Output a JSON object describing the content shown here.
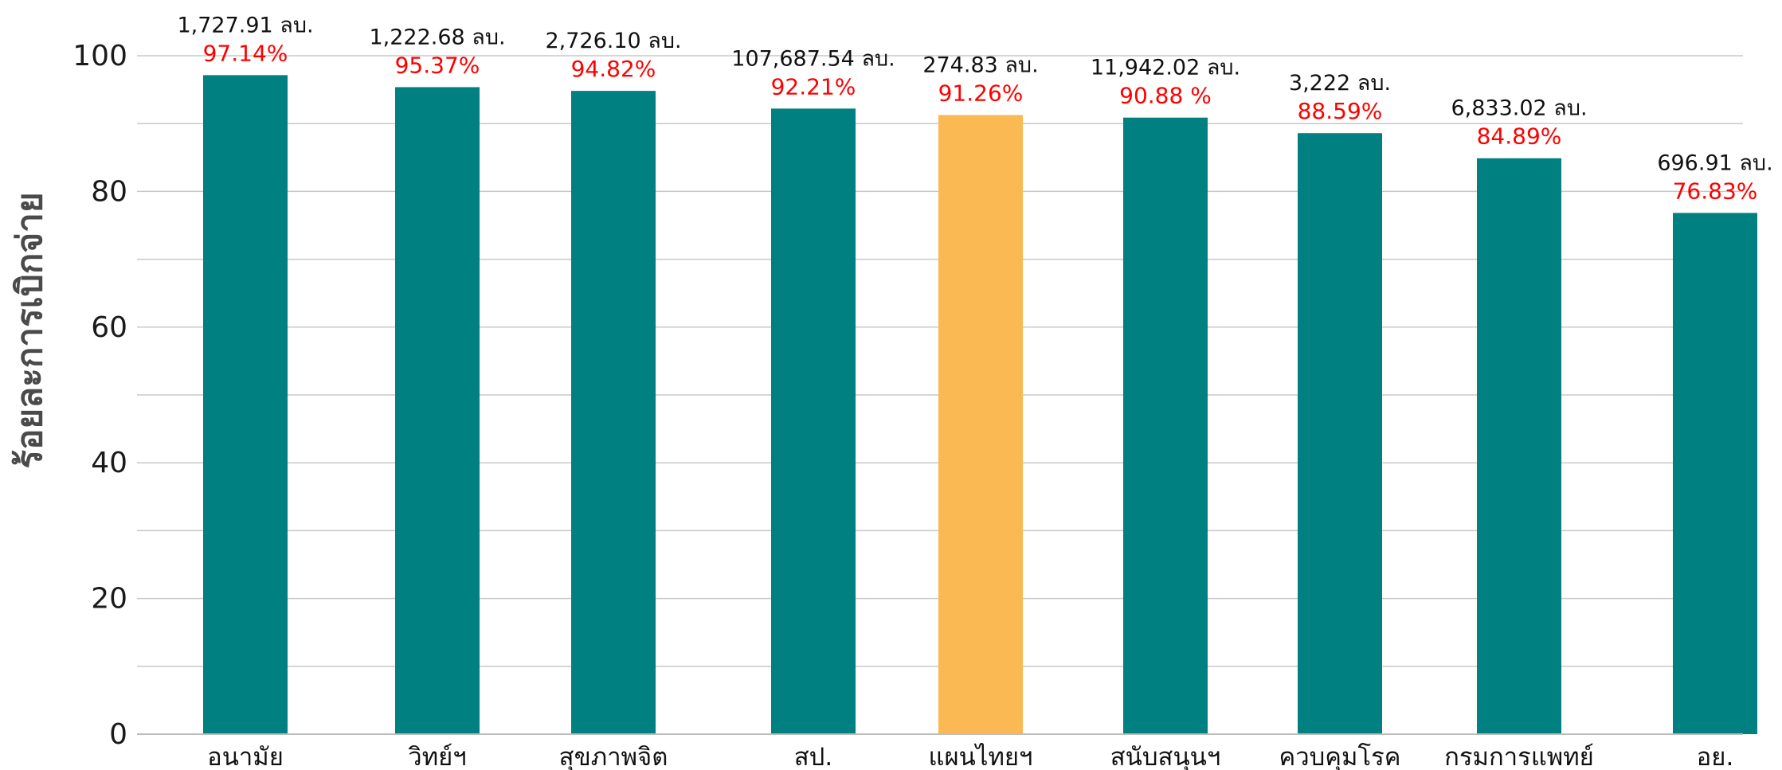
{
  "chart_data": {
    "type": "bar",
    "title": "",
    "xlabel": "",
    "ylabel": "ร้อยละการเบิกจ่าย",
    "ylim": [
      0,
      100
    ],
    "yticks": [
      "0",
      "20",
      "40",
      "60",
      "80",
      "100"
    ],
    "grid": true,
    "colors": {
      "default_bar": "#008080",
      "highlight_bar": "#FBB954",
      "percent_label": "#FF0000",
      "amount_label": "#111111"
    },
    "categories": [
      "อนามัย",
      "วิทย์ฯ",
      "สุขภาพจิต",
      "สป.",
      "แผนไทยฯ",
      "สนับสนุนฯ",
      "ควบคุมโรค",
      "กรมการแพทย์",
      "อย."
    ],
    "values": [
      97.14,
      95.37,
      94.82,
      92.21,
      91.26,
      90.88,
      88.59,
      84.89,
      76.83
    ],
    "percent_labels": [
      "97.14%",
      "95.37%",
      "94.82%",
      "92.21%",
      "91.26%",
      "90.88 %",
      "88.59%",
      "84.89%",
      "76.83%"
    ],
    "amount_labels": [
      "1,727.91 ลบ.",
      "1,222.68 ลบ.",
      "2,726.10 ลบ.",
      "107,687.54 ลบ.",
      "274.83 ลบ.",
      "11,942.02 ลบ.",
      "3,222 ลบ.",
      "6,833.02 ลบ.",
      "696.91 ลบ."
    ],
    "highlighted": [
      "แผนไทยฯ"
    ]
  }
}
